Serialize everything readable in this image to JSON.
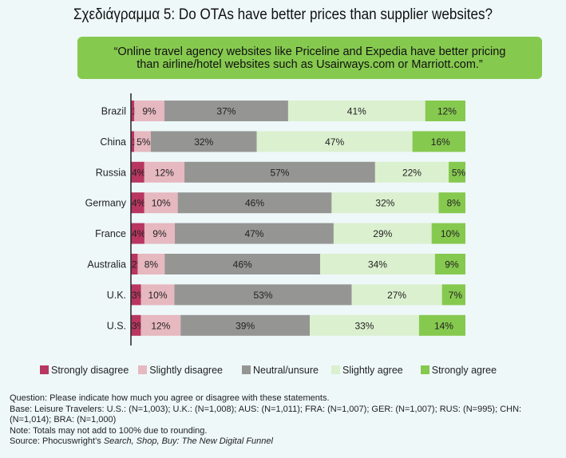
{
  "title": "Σχεδιάγραμμα 5: Do OTAs have better prices than supplier websites?",
  "quote": {
    "line1": "“Online travel agency websites like Priceline and Expedia have better pricing",
    "line2": "than airline/hotel websites such as Usairways.com or Marriott.com.”"
  },
  "colors": {
    "strongly_disagree": "#b83660",
    "slightly_disagree": "#e6b8c0",
    "neutral": "#959694",
    "slightly_agree": "#dbf0cf",
    "strongly_agree": "#86c94f",
    "quote_box": "#86c94f",
    "background": "#eef8f9"
  },
  "chart_data": {
    "type": "bar",
    "orientation": "horizontal",
    "stacked": true,
    "title": "Σχεδιάγραμμα 5: Do OTAs have better prices than supplier websites?",
    "xlabel": "",
    "ylabel": "",
    "unit": "%",
    "categories": [
      "Brazil",
      "China",
      "Russia",
      "Germany",
      "France",
      "Australia",
      "U.K.",
      "U.S."
    ],
    "series": [
      {
        "name": "Strongly disagree",
        "color": "#b83660",
        "values": [
          1,
          1,
          4,
          4,
          4,
          2,
          3,
          3
        ]
      },
      {
        "name": "Slightly disagree",
        "color": "#e6b8c0",
        "values": [
          9,
          5,
          12,
          10,
          9,
          8,
          10,
          12
        ]
      },
      {
        "name": "Neutral/unsure",
        "color": "#959694",
        "values": [
          37,
          32,
          57,
          46,
          47,
          46,
          53,
          39
        ]
      },
      {
        "name": "Slightly agree",
        "color": "#dbf0cf",
        "values": [
          41,
          47,
          22,
          32,
          29,
          34,
          27,
          33
        ]
      },
      {
        "name": "Strongly agree",
        "color": "#86c94f",
        "values": [
          12,
          16,
          5,
          8,
          10,
          9,
          7,
          14
        ]
      }
    ],
    "legend_position": "bottom",
    "grid": false
  },
  "legend": [
    {
      "label": "Strongly disagree",
      "key": "strongly_disagree"
    },
    {
      "label": "Slightly disagree",
      "key": "slightly_disagree"
    },
    {
      "label": "Neutral/unsure",
      "key": "neutral"
    },
    {
      "label": "Slightly agree",
      "key": "slightly_agree"
    },
    {
      "label": "Strongly agree",
      "key": "strongly_agree"
    }
  ],
  "footnotes": {
    "question": "Question: Please indicate how much you agree or disagree with these statements.",
    "base": "Base: Leisure Travelers: U.S.: (N=1,003); U.K.: (N=1,008); AUS: (N=1,011); FRA: (N=1,007); GER: (N=1,007); RUS: (N=995); CHN: (N=1,014); BRA: (N=1,000)",
    "note": "Note: Totals may not add to 100% due to rounding.",
    "source_prefix": "Source: Phocuswright’s ",
    "source_title": "Search, Shop, Buy: The New Digital Funnel"
  }
}
